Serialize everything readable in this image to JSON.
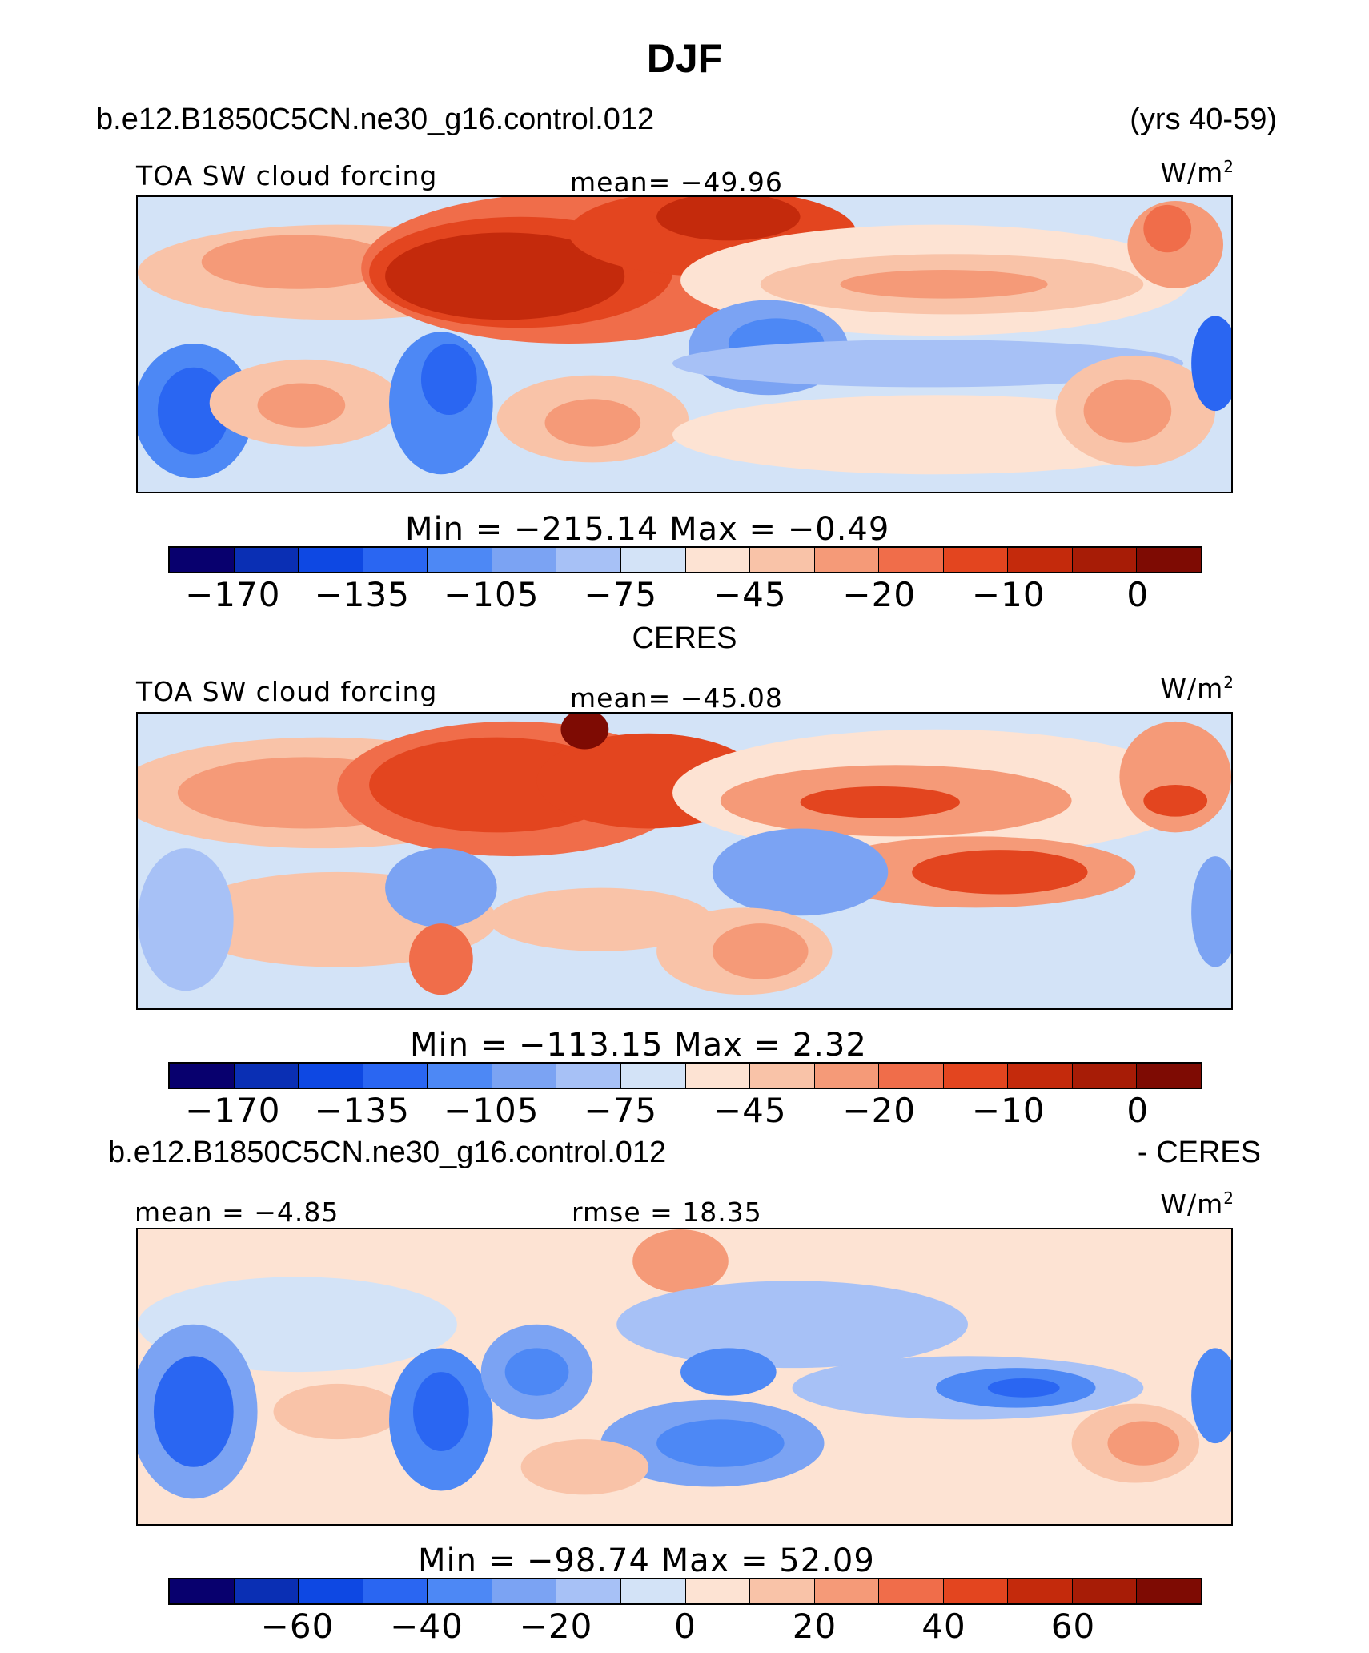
{
  "title": "DJF",
  "header": {
    "case": "b.e12.B1850C5CN.ne30_g16.control.012",
    "years": "(yrs 40-59)"
  },
  "colors": [
    "#08006e",
    "#0a2fb4",
    "#0e48e3",
    "#2a66f2",
    "#4d88f5",
    "#7ba3f3",
    "#a7c1f6",
    "#d3e3f7",
    "#fde3d3",
    "#f9c3a8",
    "#f59a78",
    "#f06d4a",
    "#e3451f",
    "#c42a0c",
    "#a71c06",
    "#7e0b03"
  ],
  "panels": [
    {
      "label": "TOA SW cloud forcing",
      "mean_text": "mean= −49.96",
      "units": "W/m",
      "units_sup": "2",
      "minmax": "Min  =  −215.14  Max  =    −0.49",
      "ticks": [
        {
          "label": "−170",
          "pos": 1
        },
        {
          "label": "−135",
          "pos": 3
        },
        {
          "label": "−105",
          "pos": 5
        },
        {
          "label": "−75",
          "pos": 7
        },
        {
          "label": "−45",
          "pos": 9
        },
        {
          "label": "−20",
          "pos": 11
        },
        {
          "label": "−10",
          "pos": 13
        },
        {
          "label": "0",
          "pos": 15
        }
      ]
    },
    {
      "heading": "CERES",
      "label": "TOA SW cloud forcing",
      "mean_text": "mean= −45.08",
      "units": "W/m",
      "units_sup": "2",
      "minmax": "Min  =  −113.15  Max  =     2.32",
      "ticks": [
        {
          "label": "−170",
          "pos": 1
        },
        {
          "label": "−135",
          "pos": 3
        },
        {
          "label": "−105",
          "pos": 5
        },
        {
          "label": "−75",
          "pos": 7
        },
        {
          "label": "−45",
          "pos": 9
        },
        {
          "label": "−20",
          "pos": 11
        },
        {
          "label": "−10",
          "pos": 13
        },
        {
          "label": "0",
          "pos": 15
        }
      ]
    },
    {
      "heading_left": "b.e12.B1850C5CN.ne30_g16.control.012",
      "heading_right": "- CERES",
      "mean_text": "mean  =   −4.85",
      "rmse_text": "rmse  =   18.35",
      "units": "W/m",
      "units_sup": "2",
      "minmax": "Min  =  −98.74  Max  =    52.09",
      "ticks": [
        {
          "label": "−60",
          "pos": 2
        },
        {
          "label": "−40",
          "pos": 4
        },
        {
          "label": "−20",
          "pos": 6
        },
        {
          "label": "0",
          "pos": 8
        },
        {
          "label": "20",
          "pos": 10
        },
        {
          "label": "40",
          "pos": 12
        },
        {
          "label": "60",
          "pos": 14
        }
      ]
    }
  ],
  "chart_data": [
    {
      "type": "heatmap",
      "subtitle": "TOA SW cloud forcing",
      "units": "W/m2",
      "mean": -49.96,
      "min": -215.14,
      "max": -0.49,
      "colorbar_ticks": [
        -170,
        -135,
        -105,
        -75,
        -45,
        -20,
        -10,
        0
      ]
    },
    {
      "type": "heatmap",
      "title": "CERES",
      "subtitle": "TOA SW cloud forcing",
      "units": "W/m2",
      "mean": -45.08,
      "min": -113.15,
      "max": 2.32,
      "colorbar_ticks": [
        -170,
        -135,
        -105,
        -75,
        -45,
        -20,
        -10,
        0
      ]
    },
    {
      "type": "heatmap",
      "title": "b.e12.B1850C5CN.ne30_g16.control.012 - CERES",
      "units": "W/m2",
      "mean": -4.85,
      "rmse": 18.35,
      "min": -98.74,
      "max": 52.09,
      "colorbar_ticks": [
        -60,
        -40,
        -20,
        0,
        20,
        40,
        60
      ]
    }
  ]
}
